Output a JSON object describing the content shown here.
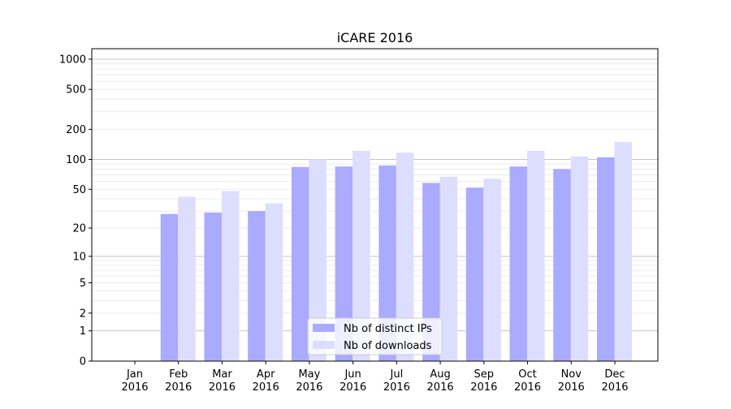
{
  "chart_data": {
    "type": "bar",
    "title": "iCARE 2016",
    "xlabel": "",
    "ylabel": "",
    "yscale": "log(1+y)",
    "ylim": [
      0,
      1270
    ],
    "yticks": [
      0,
      1,
      2,
      5,
      10,
      20,
      50,
      100,
      200,
      500,
      1000
    ],
    "grid": true,
    "legend_position": "bottom-center",
    "categories": [
      "Jan\n2016",
      "Feb\n2016",
      "Mar\n2016",
      "Apr\n2016",
      "May\n2016",
      "Jun\n2016",
      "Jul\n2016",
      "Aug\n2016",
      "Sep\n2016",
      "Oct\n2016",
      "Nov\n2016",
      "Dec\n2016"
    ],
    "series": [
      {
        "name": "Nb of distinct IPs",
        "color": "#aaaaff",
        "values": [
          0,
          28,
          29,
          30,
          84,
          85,
          87,
          58,
          52,
          85,
          80,
          105
        ]
      },
      {
        "name": "Nb of downloads",
        "color": "#ddddff",
        "values": [
          0,
          42,
          48,
          36,
          100,
          122,
          117,
          67,
          64,
          122,
          107,
          149
        ]
      }
    ]
  }
}
